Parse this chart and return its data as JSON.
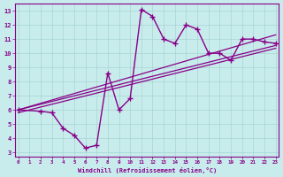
{
  "title": "",
  "xlabel": "Windchill (Refroidissement éolien,°C)",
  "bg_color": "#c8ecec",
  "grid_color": "#a8d4d4",
  "line_color": "#880088",
  "x_ticks": [
    0,
    1,
    2,
    3,
    4,
    5,
    6,
    7,
    8,
    9,
    10,
    11,
    12,
    13,
    14,
    15,
    16,
    17,
    18,
    19,
    20,
    21,
    22,
    23
  ],
  "y_ticks": [
    3,
    4,
    5,
    6,
    7,
    8,
    9,
    10,
    11,
    12,
    13
  ],
  "xlim": [
    -0.3,
    23.3
  ],
  "ylim": [
    2.7,
    13.5
  ],
  "zigzag_x": [
    0,
    2,
    3,
    4,
    5,
    6,
    7,
    8,
    9,
    10,
    11,
    12,
    13,
    14,
    15,
    16,
    17,
    18,
    19,
    20,
    21,
    22,
    23
  ],
  "zigzag_y": [
    6.0,
    5.9,
    5.8,
    4.7,
    4.2,
    3.3,
    3.5,
    8.6,
    6.0,
    6.8,
    13.1,
    12.6,
    11.0,
    10.7,
    12.0,
    11.7,
    10.0,
    10.0,
    9.5,
    11.0,
    11.0,
    10.8,
    10.7
  ],
  "line1_x": [
    0,
    23
  ],
  "line1_y": [
    6.0,
    11.3
  ],
  "line2_x": [
    0,
    23
  ],
  "line2_y": [
    6.0,
    10.55
  ],
  "line3_x": [
    0,
    23
  ],
  "line3_y": [
    5.8,
    10.35
  ],
  "lw_thin": 0.9,
  "lw_main": 1.0,
  "marker_size": 4.0
}
